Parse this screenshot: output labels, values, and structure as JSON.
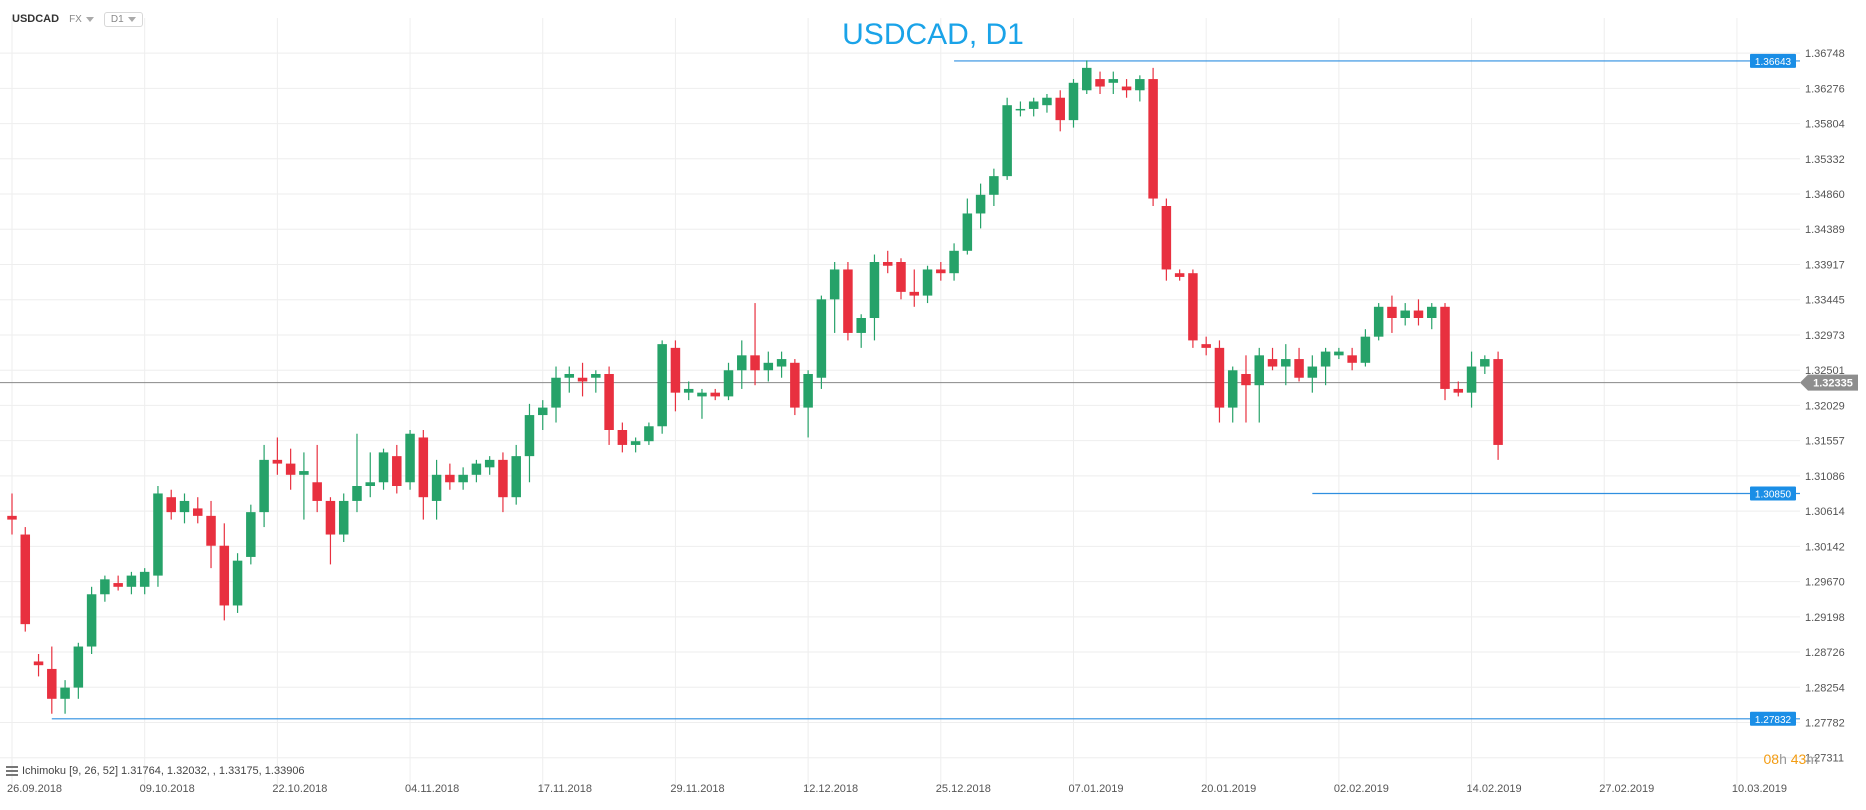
{
  "header": {
    "symbol": "USDCAD",
    "market": "FX",
    "timeframe": "D1"
  },
  "title": "USDCAD, D1",
  "indicator_legend": "Ichimoku  [9, 26, 52]  1.31764,  1.32032,  ,  1.33175,  1.33906",
  "timer": {
    "hours": "08",
    "h_unit": "h",
    "minutes": "43",
    "m_unit": "m"
  },
  "colors": {
    "up": "#26a269",
    "down": "#e8303f",
    "tenkan": "#ef6b57",
    "kijun": "#2f8fe0",
    "chikou": "#6ea23c",
    "cloud_bull": "#c9f3f3",
    "cloud_bear": "#f8d3ae",
    "span_a": "#f0a85a",
    "span_b": "#9edfe6",
    "hline": "#2f8fe0",
    "price_line": "#888888",
    "label_blue": "#1a8ee6",
    "label_gray": "#8e8e8e",
    "grid": "#eeeeee",
    "title": "#1aa3e8"
  },
  "chart_data": {
    "type": "candlestick",
    "title": "USDCAD, D1",
    "y_ticks": [
      "1.36748",
      "1.36276",
      "1.35804",
      "1.35332",
      "1.34860",
      "1.34389",
      "1.33917",
      "1.33445",
      "1.32973",
      "1.32501",
      "1.32029",
      "1.31557",
      "1.31086",
      "1.30614",
      "1.30142",
      "1.29670",
      "1.29198",
      "1.28726",
      "1.28254",
      "1.27782",
      "1.27311"
    ],
    "x_labels": [
      {
        "i": 0,
        "label": "26.09.2018"
      },
      {
        "i": 10,
        "label": "09.10.2018"
      },
      {
        "i": 20,
        "label": "22.10.2018"
      },
      {
        "i": 30,
        "label": "04.11.2018"
      },
      {
        "i": 40,
        "label": "17.11.2018"
      },
      {
        "i": 50,
        "label": "29.11.2018"
      },
      {
        "i": 60,
        "label": "12.12.2018"
      },
      {
        "i": 70,
        "label": "25.12.2018"
      },
      {
        "i": 80,
        "label": "07.01.2019"
      },
      {
        "i": 90,
        "label": "20.01.2019"
      },
      {
        "i": 100,
        "label": "02.02.2019"
      },
      {
        "i": 110,
        "label": "14.02.2019"
      },
      {
        "i": 120,
        "label": "27.02.2019"
      },
      {
        "i": 130,
        "label": "10.03.2019"
      }
    ],
    "ylim": [
      1.272,
      1.3695
    ],
    "x_range": [
      0,
      134
    ],
    "current_price": "1.32335",
    "current_value": 1.32335,
    "candles": [
      [
        1.3055,
        1.3085,
        1.303,
        1.305
      ],
      [
        1.303,
        1.304,
        1.29,
        1.291
      ],
      [
        1.286,
        1.287,
        1.284,
        1.2855
      ],
      [
        1.285,
        1.288,
        1.279,
        1.281
      ],
      [
        1.281,
        1.2835,
        1.279,
        1.2825
      ],
      [
        1.2825,
        1.2885,
        1.281,
        1.288
      ],
      [
        1.288,
        1.296,
        1.287,
        1.295
      ],
      [
        1.295,
        1.2975,
        1.294,
        1.297
      ],
      [
        1.2965,
        1.2975,
        1.2955,
        1.296
      ],
      [
        1.296,
        1.298,
        1.295,
        1.2975
      ],
      [
        1.296,
        1.2985,
        1.295,
        1.298
      ],
      [
        1.2975,
        1.3095,
        1.296,
        1.3085
      ],
      [
        1.308,
        1.309,
        1.305,
        1.306
      ],
      [
        1.306,
        1.3085,
        1.3045,
        1.3075
      ],
      [
        1.3065,
        1.308,
        1.3045,
        1.3055
      ],
      [
        1.3055,
        1.3075,
        1.2985,
        1.3015
      ],
      [
        1.3015,
        1.3045,
        1.2915,
        1.2935
      ],
      [
        1.2935,
        1.3005,
        1.2925,
        1.2995
      ],
      [
        1.3,
        1.307,
        1.299,
        1.306
      ],
      [
        1.306,
        1.315,
        1.304,
        1.313
      ],
      [
        1.313,
        1.316,
        1.311,
        1.3125
      ],
      [
        1.3125,
        1.3145,
        1.309,
        1.311
      ],
      [
        1.311,
        1.314,
        1.305,
        1.3115
      ],
      [
        1.31,
        1.315,
        1.306,
        1.3075
      ],
      [
        1.3075,
        1.308,
        1.299,
        1.303
      ],
      [
        1.303,
        1.3085,
        1.302,
        1.3075
      ],
      [
        1.3075,
        1.3165,
        1.306,
        1.3095
      ],
      [
        1.3095,
        1.314,
        1.308,
        1.31
      ],
      [
        1.31,
        1.3145,
        1.309,
        1.314
      ],
      [
        1.3135,
        1.315,
        1.3085,
        1.3095
      ],
      [
        1.31,
        1.317,
        1.309,
        1.3165
      ],
      [
        1.316,
        1.317,
        1.305,
        1.308
      ],
      [
        1.3075,
        1.313,
        1.305,
        1.311
      ],
      [
        1.311,
        1.3125,
        1.309,
        1.31
      ],
      [
        1.31,
        1.312,
        1.309,
        1.311
      ],
      [
        1.311,
        1.313,
        1.31,
        1.3125
      ],
      [
        1.312,
        1.3135,
        1.311,
        1.313
      ],
      [
        1.313,
        1.314,
        1.306,
        1.308
      ],
      [
        1.308,
        1.315,
        1.307,
        1.3135
      ],
      [
        1.3135,
        1.3205,
        1.31,
        1.319
      ],
      [
        1.319,
        1.321,
        1.317,
        1.32
      ],
      [
        1.32,
        1.3255,
        1.318,
        1.324
      ],
      [
        1.324,
        1.3255,
        1.322,
        1.3245
      ],
      [
        1.324,
        1.326,
        1.3215,
        1.3235
      ],
      [
        1.324,
        1.325,
        1.322,
        1.3245
      ],
      [
        1.3245,
        1.3255,
        1.315,
        1.317
      ],
      [
        1.317,
        1.318,
        1.314,
        1.315
      ],
      [
        1.315,
        1.316,
        1.314,
        1.3155
      ],
      [
        1.3155,
        1.318,
        1.315,
        1.3175
      ],
      [
        1.3175,
        1.329,
        1.3165,
        1.3285
      ],
      [
        1.328,
        1.329,
        1.3195,
        1.322
      ],
      [
        1.322,
        1.3235,
        1.321,
        1.3225
      ],
      [
        1.3215,
        1.3225,
        1.3185,
        1.322
      ],
      [
        1.322,
        1.3225,
        1.321,
        1.3215
      ],
      [
        1.3215,
        1.326,
        1.321,
        1.325
      ],
      [
        1.325,
        1.329,
        1.3225,
        1.327
      ],
      [
        1.327,
        1.334,
        1.323,
        1.325
      ],
      [
        1.325,
        1.3275,
        1.3235,
        1.326
      ],
      [
        1.3255,
        1.3275,
        1.324,
        1.3265
      ],
      [
        1.326,
        1.3265,
        1.319,
        1.32
      ],
      [
        1.32,
        1.325,
        1.316,
        1.3245
      ],
      [
        1.324,
        1.335,
        1.3225,
        1.3345
      ],
      [
        1.3345,
        1.3395,
        1.33,
        1.3385
      ],
      [
        1.3385,
        1.3395,
        1.329,
        1.33
      ],
      [
        1.33,
        1.3325,
        1.328,
        1.332
      ],
      [
        1.332,
        1.3405,
        1.329,
        1.3395
      ],
      [
        1.3395,
        1.341,
        1.338,
        1.339
      ],
      [
        1.3395,
        1.34,
        1.3345,
        1.3355
      ],
      [
        1.3355,
        1.3385,
        1.3335,
        1.335
      ],
      [
        1.335,
        1.339,
        1.334,
        1.3385
      ],
      [
        1.3385,
        1.3395,
        1.337,
        1.338
      ],
      [
        1.338,
        1.342,
        1.337,
        1.341
      ],
      [
        1.341,
        1.348,
        1.3405,
        1.346
      ],
      [
        1.346,
        1.35,
        1.344,
        1.3485
      ],
      [
        1.3485,
        1.352,
        1.347,
        1.351
      ],
      [
        1.351,
        1.3615,
        1.3505,
        1.3605
      ],
      [
        1.36,
        1.361,
        1.359,
        1.36
      ],
      [
        1.36,
        1.3615,
        1.359,
        1.361
      ],
      [
        1.3605,
        1.362,
        1.3595,
        1.3615
      ],
      [
        1.3615,
        1.3625,
        1.357,
        1.3585
      ],
      [
        1.3585,
        1.364,
        1.3575,
        1.3635
      ],
      [
        1.3625,
        1.3665,
        1.362,
        1.3655
      ],
      [
        1.364,
        1.365,
        1.362,
        1.363
      ],
      [
        1.3635,
        1.365,
        1.362,
        1.364
      ],
      [
        1.363,
        1.364,
        1.3615,
        1.3625
      ],
      [
        1.3625,
        1.3645,
        1.361,
        1.364
      ],
      [
        1.364,
        1.3655,
        1.347,
        1.348
      ],
      [
        1.347,
        1.348,
        1.337,
        1.3385
      ],
      [
        1.338,
        1.3385,
        1.337,
        1.3375
      ],
      [
        1.338,
        1.3385,
        1.328,
        1.329
      ],
      [
        1.3285,
        1.3295,
        1.327,
        1.328
      ],
      [
        1.328,
        1.329,
        1.318,
        1.32
      ],
      [
        1.32,
        1.3255,
        1.318,
        1.325
      ],
      [
        1.3245,
        1.327,
        1.318,
        1.323
      ],
      [
        1.323,
        1.328,
        1.318,
        1.327
      ],
      [
        1.3265,
        1.328,
        1.325,
        1.3255
      ],
      [
        1.3255,
        1.3285,
        1.323,
        1.3265
      ],
      [
        1.3265,
        1.328,
        1.3235,
        1.324
      ],
      [
        1.324,
        1.327,
        1.322,
        1.3255
      ],
      [
        1.3255,
        1.328,
        1.323,
        1.3275
      ],
      [
        1.327,
        1.328,
        1.3265,
        1.3275
      ],
      [
        1.327,
        1.328,
        1.325,
        1.326
      ],
      [
        1.326,
        1.3305,
        1.3255,
        1.3295
      ],
      [
        1.3295,
        1.334,
        1.329,
        1.3335
      ],
      [
        1.3335,
        1.335,
        1.33,
        1.332
      ],
      [
        1.332,
        1.334,
        1.331,
        1.333
      ],
      [
        1.333,
        1.3345,
        1.331,
        1.332
      ],
      [
        1.332,
        1.334,
        1.3305,
        1.3335
      ],
      [
        1.3335,
        1.334,
        1.321,
        1.3225
      ],
      [
        1.3225,
        1.3235,
        1.3215,
        1.322
      ],
      [
        1.322,
        1.3275,
        1.32,
        1.3255
      ],
      [
        1.3255,
        1.327,
        1.3245,
        1.3265
      ],
      [
        1.3265,
        1.3275,
        1.313,
        1.315
      ]
    ],
    "candle_start_index": 0,
    "tenkan": [],
    "kijun": [],
    "chikou": [],
    "horizontal_lines": [
      {
        "value": 1.36643,
        "label": "1.36643",
        "x_start_index": 71
      },
      {
        "value": 1.3085,
        "label": "1.30850",
        "x_start_index": 98
      },
      {
        "value": 1.27832,
        "label": "1.27832",
        "x_start_index": 3
      }
    ]
  }
}
